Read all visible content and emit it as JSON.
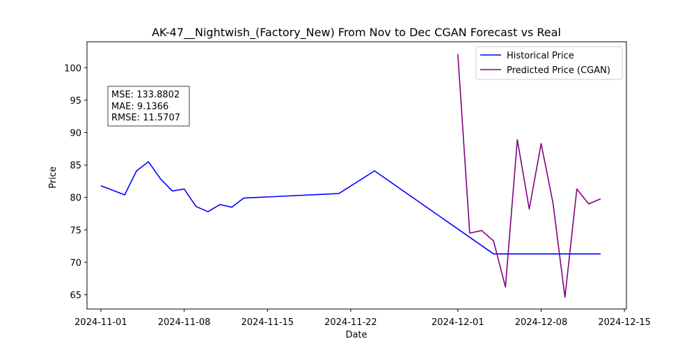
{
  "chart_data": {
    "type": "line",
    "title": "AK-47__Nightwish_(Factory_New) From Nov to Dec CGAN Forecast vs Real",
    "xlabel": "Date",
    "ylabel": "Price",
    "xlim": [
      "2024-10-30T20:00",
      "2024-12-15T04:00"
    ],
    "ylim": [
      62.8,
      104.0
    ],
    "x_ticks": [
      "2024-11-01",
      "2024-11-08",
      "2024-11-15",
      "2024-11-22",
      "2024-12-01",
      "2024-12-08",
      "2024-12-15"
    ],
    "y_ticks": [
      65,
      70,
      75,
      80,
      85,
      90,
      95,
      100
    ],
    "grid": false,
    "legend_position": "top-right",
    "metrics_box": {
      "lines": [
        "MSE: 133.8802",
        "MAE: 9.1366",
        "RMSE: 11.5707"
      ]
    },
    "series": [
      {
        "name": "Historical Price",
        "color": "#0000ff",
        "points": [
          {
            "x": "2024-11-01",
            "y": 81.8
          },
          {
            "x": "2024-11-02",
            "y": 81.1
          },
          {
            "x": "2024-11-03",
            "y": 80.4
          },
          {
            "x": "2024-11-04",
            "y": 84.1
          },
          {
            "x": "2024-11-05",
            "y": 85.5
          },
          {
            "x": "2024-11-06",
            "y": 82.9
          },
          {
            "x": "2024-11-07",
            "y": 81.0
          },
          {
            "x": "2024-11-08",
            "y": 81.3
          },
          {
            "x": "2024-11-09",
            "y": 78.6
          },
          {
            "x": "2024-11-10",
            "y": 77.8
          },
          {
            "x": "2024-11-11",
            "y": 78.9
          },
          {
            "x": "2024-11-12",
            "y": 78.5
          },
          {
            "x": "2024-11-13",
            "y": 79.9
          },
          {
            "x": "2024-11-21",
            "y": 80.6
          },
          {
            "x": "2024-11-24",
            "y": 84.1
          },
          {
            "x": "2024-12-04",
            "y": 71.3
          },
          {
            "x": "2024-12-05",
            "y": 71.3
          },
          {
            "x": "2024-12-06",
            "y": 71.3
          },
          {
            "x": "2024-12-07",
            "y": 71.3
          },
          {
            "x": "2024-12-08",
            "y": 71.3
          },
          {
            "x": "2024-12-09",
            "y": 71.3
          },
          {
            "x": "2024-12-10",
            "y": 71.3
          },
          {
            "x": "2024-12-11",
            "y": 71.3
          },
          {
            "x": "2024-12-12",
            "y": 71.3
          },
          {
            "x": "2024-12-13",
            "y": 71.3
          }
        ]
      },
      {
        "name": "Predicted Price (CGAN)",
        "color": "#800080",
        "points": [
          {
            "x": "2024-12-01",
            "y": 102.1
          },
          {
            "x": "2024-12-02",
            "y": 74.5
          },
          {
            "x": "2024-12-03",
            "y": 74.9
          },
          {
            "x": "2024-12-04",
            "y": 73.3
          },
          {
            "x": "2024-12-05",
            "y": 66.2
          },
          {
            "x": "2024-12-06",
            "y": 88.9
          },
          {
            "x": "2024-12-07",
            "y": 78.2
          },
          {
            "x": "2024-12-08",
            "y": 88.3
          },
          {
            "x": "2024-12-09",
            "y": 79.1
          },
          {
            "x": "2024-12-10",
            "y": 64.6
          },
          {
            "x": "2024-12-11",
            "y": 81.3
          },
          {
            "x": "2024-12-12",
            "y": 79.0
          },
          {
            "x": "2024-12-13",
            "y": 79.8
          }
        ]
      }
    ]
  }
}
